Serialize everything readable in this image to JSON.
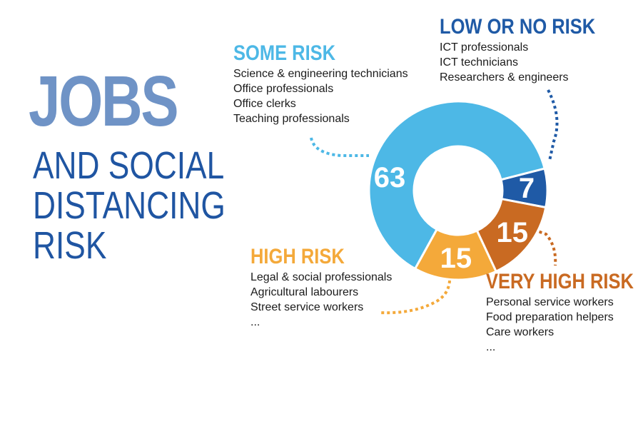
{
  "title": {
    "main": "JOBS",
    "lines": [
      "AND SOCIAL",
      "DISTANCING",
      "RISK"
    ]
  },
  "chart_data": {
    "type": "pie",
    "categories": [
      "LOW OR NO RISK",
      "VERY HIGH RISK",
      "HIGH RISK",
      "SOME RISK"
    ],
    "values": [
      7,
      15,
      15,
      63
    ],
    "value_labels": [
      "7",
      "15",
      "15",
      "63"
    ],
    "colors": [
      "#1f5aa6",
      "#c96a22",
      "#f4a93a",
      "#4db8e6"
    ],
    "donut": true
  },
  "groups": {
    "low": {
      "label": "LOW OR NO RISK",
      "color": "#1f5aa6",
      "items": [
        "ICT professionals",
        "ICT technicians",
        "Researchers & engineers"
      ]
    },
    "some": {
      "label": "SOME RISK",
      "color": "#4db8e6",
      "items": [
        "Science & engineering technicians",
        "Office professionals",
        "Office clerks",
        "Teaching professionals"
      ]
    },
    "high": {
      "label": "HIGH RISK",
      "color": "#f4a93a",
      "items": [
        "Legal & social professionals",
        "Agricultural labourers",
        "Street service workers",
        "..."
      ]
    },
    "very_high": {
      "label": "VERY HIGH RISK",
      "color": "#c96a22",
      "items": [
        "Personal service workers",
        "Food preparation helpers",
        "Care workers",
        "..."
      ]
    }
  }
}
